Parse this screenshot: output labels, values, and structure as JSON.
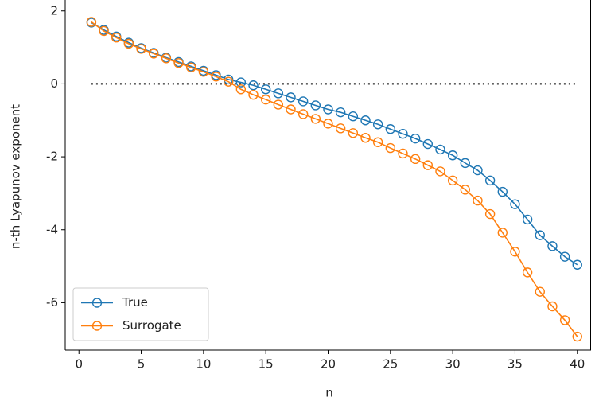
{
  "chart_data": {
    "type": "line",
    "xlabel": "n",
    "ylabel": "n-th Lyapunov exponent",
    "x": [
      1,
      2,
      3,
      4,
      5,
      6,
      7,
      8,
      9,
      10,
      11,
      12,
      13,
      14,
      15,
      16,
      17,
      18,
      19,
      20,
      21,
      22,
      23,
      24,
      25,
      26,
      27,
      28,
      29,
      30,
      31,
      32,
      33,
      34,
      35,
      36,
      37,
      38,
      39,
      40
    ],
    "series": [
      {
        "name": "True",
        "color": "#1f77b4",
        "values": [
          1.68,
          1.48,
          1.3,
          1.13,
          0.98,
          0.85,
          0.72,
          0.6,
          0.48,
          0.36,
          0.24,
          0.12,
          0.04,
          -0.04,
          -0.15,
          -0.26,
          -0.37,
          -0.48,
          -0.59,
          -0.7,
          -0.78,
          -0.89,
          -1.0,
          -1.11,
          -1.24,
          -1.37,
          -1.5,
          -1.65,
          -1.8,
          -1.96,
          -2.17,
          -2.37,
          -2.65,
          -2.96,
          -3.3,
          -3.72,
          -4.15,
          -4.45,
          -4.74,
          -4.96
        ]
      },
      {
        "name": "Surrogate",
        "color": "#ff7f0e",
        "values": [
          1.7,
          1.45,
          1.27,
          1.1,
          0.96,
          0.83,
          0.7,
          0.57,
          0.45,
          0.33,
          0.2,
          0.06,
          -0.15,
          -0.3,
          -0.43,
          -0.57,
          -0.7,
          -0.83,
          -0.96,
          -1.09,
          -1.22,
          -1.35,
          -1.48,
          -1.6,
          -1.76,
          -1.91,
          -2.06,
          -2.23,
          -2.4,
          -2.65,
          -2.9,
          -3.2,
          -3.57,
          -4.08,
          -4.6,
          -5.17,
          -5.7,
          -6.1,
          -6.48,
          -6.93
        ]
      }
    ],
    "reference_line": {
      "y": 0,
      "x": [
        1,
        40
      ],
      "color": "#000000"
    },
    "xlim": [
      -1.1,
      41.1
    ],
    "ylim": [
      -7.3,
      2.3
    ],
    "xticks": [
      0,
      5,
      10,
      15,
      20,
      25,
      30,
      35,
      40
    ],
    "yticks": [
      -6,
      -4,
      -2,
      0,
      2
    ],
    "legend": "lower left"
  }
}
